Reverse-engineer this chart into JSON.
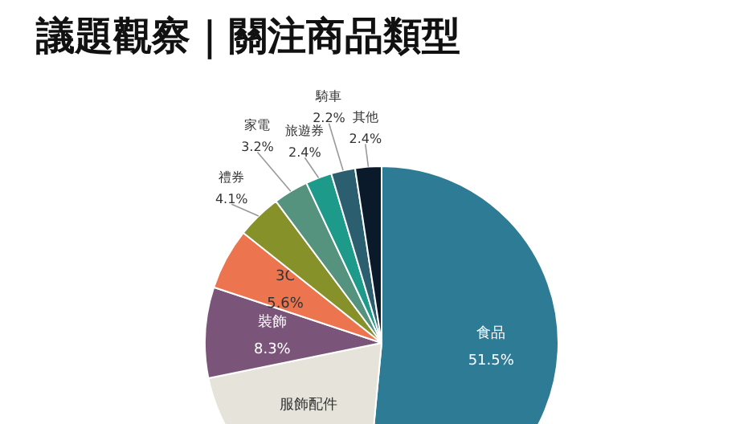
{
  "chart_data": {
    "type": "pie",
    "title": "議題觀察｜關注商品類型",
    "categories": [
      "食品",
      "服飾配件",
      "裝飾",
      "3C",
      "禮券",
      "家電",
      "旅遊券",
      "騎車",
      "其他"
    ],
    "values": [
      51.5,
      20.3,
      8.3,
      5.6,
      4.1,
      3.2,
      2.4,
      2.2,
      2.4
    ],
    "value_labels": [
      "51.5%",
      null,
      "8.3%",
      "5.6%",
      "4.1%",
      "3.2%",
      "2.4%",
      "2.2%",
      "2.4%"
    ],
    "colors": [
      "#2e7b96",
      "#e6e4da",
      "#7a5579",
      "#ec7550",
      "#87912a",
      "#56937f",
      "#1e9a8a",
      "#2b5e6e",
      "#0b1a2a"
    ]
  }
}
